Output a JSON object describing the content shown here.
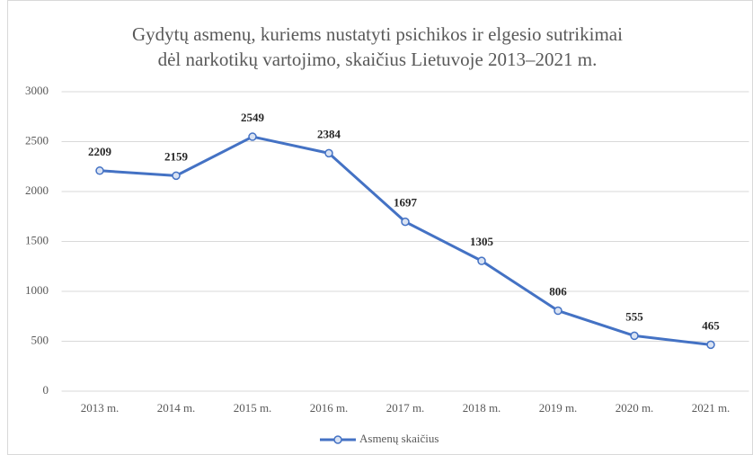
{
  "chart_data": {
    "type": "line",
    "title": [
      "Gydytų asmenų, kuriems nustatyti psichikos ir elgesio sutrikimai",
      "dėl narkotikų vartojimo, skaičius Lietuvoje 2013–2021 m."
    ],
    "categories": [
      "2013 m.",
      "2014 m.",
      "2015 m.",
      "2016 m.",
      "2017 m.",
      "2018 m.",
      "2019 m.",
      "2020 m.",
      "2021 m."
    ],
    "series": [
      {
        "name": "Asmenų skaičius",
        "color": "#4472c4",
        "values": [
          2209,
          2159,
          2549,
          2384,
          1697,
          1305,
          806,
          555,
          465
        ]
      }
    ],
    "ylim": [
      0,
      3000
    ],
    "yticks": [
      0,
      500,
      1000,
      1500,
      2000,
      2500,
      3000
    ],
    "grid": true,
    "legend": "bottom"
  }
}
